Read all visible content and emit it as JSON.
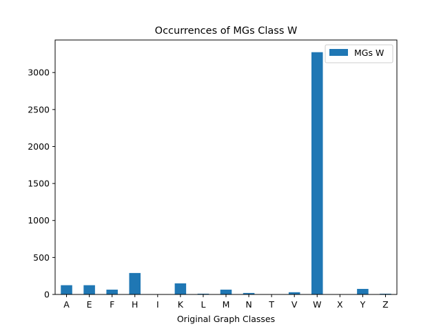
{
  "chart_data": {
    "type": "bar",
    "title": "Occurrences of MGs Class W",
    "xlabel": "Original Graph Classes",
    "ylabel": "",
    "categories": [
      "A",
      "E",
      "F",
      "H",
      "I",
      "K",
      "L",
      "M",
      "N",
      "T",
      "V",
      "W",
      "X",
      "Y",
      "Z"
    ],
    "series": [
      {
        "name": "MGs W",
        "color": "#1f77b4",
        "values": [
          125,
          125,
          65,
          290,
          0,
          150,
          10,
          65,
          20,
          0,
          30,
          3275,
          0,
          75,
          10
        ]
      }
    ],
    "ylim": [
      0,
      3440
    ],
    "yticks": [
      0,
      500,
      1000,
      1500,
      2000,
      2500,
      3000
    ],
    "legend_position": "top-right",
    "grid": false
  }
}
